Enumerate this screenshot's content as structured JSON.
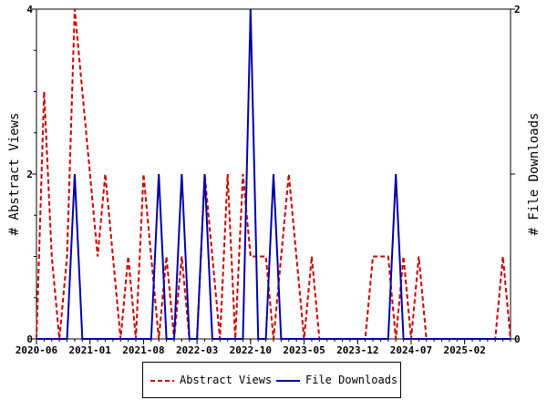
{
  "chart_data": {
    "type": "line",
    "y_left_label": "# Abstract Views",
    "y_right_label": "# File Downloads",
    "y_left_lim": [
      0,
      4
    ],
    "y_right_lim": [
      0,
      2
    ],
    "y_left_ticks": [
      "0",
      "2",
      "4"
    ],
    "y_right_ticks": [
      "0",
      "1",
      "2"
    ],
    "x_tick_labels": [
      "2020-06",
      "2021-01",
      "2021-08",
      "2022-03",
      "2022-10",
      "2023-05",
      "2023-12",
      "2024-07",
      "2025-02"
    ],
    "months": [
      "2020-06",
      "2020-07",
      "2020-08",
      "2020-09",
      "2020-10",
      "2020-11",
      "2020-12",
      "2021-01",
      "2021-02",
      "2021-03",
      "2021-04",
      "2021-05",
      "2021-06",
      "2021-07",
      "2021-08",
      "2021-09",
      "2021-10",
      "2021-11",
      "2021-12",
      "2022-01",
      "2022-02",
      "2022-03",
      "2022-04",
      "2022-05",
      "2022-06",
      "2022-07",
      "2022-08",
      "2022-09",
      "2022-10",
      "2022-11",
      "2022-12",
      "2023-01",
      "2023-02",
      "2023-03",
      "2023-04",
      "2023-05",
      "2023-06",
      "2023-07",
      "2023-08",
      "2023-09",
      "2023-10",
      "2023-11",
      "2023-12",
      "2024-01",
      "2024-02",
      "2024-03",
      "2024-04",
      "2024-05",
      "2024-06",
      "2024-07",
      "2024-08",
      "2024-09",
      "2024-10",
      "2024-11",
      "2024-12",
      "2025-01",
      "2025-02",
      "2025-03",
      "2025-04",
      "2025-05",
      "2025-06",
      "2025-07",
      "2025-08"
    ],
    "series": [
      {
        "name": "Abstract Views",
        "color": "#cc0000",
        "axis": "left",
        "style": "dashed",
        "values": [
          0,
          3,
          1,
          0,
          1,
          4,
          3,
          2,
          1,
          2,
          1,
          0,
          1,
          0,
          2,
          1,
          0,
          1,
          0,
          1,
          0,
          0,
          2,
          1,
          0,
          2,
          0,
          2,
          1,
          1,
          1,
          0,
          1,
          2,
          1,
          0,
          1,
          0,
          0,
          0,
          0,
          0,
          0,
          0,
          1,
          1,
          1,
          0,
          1,
          0,
          1,
          0,
          0,
          0,
          0,
          0,
          0,
          0,
          0,
          0,
          0,
          1,
          0
        ]
      },
      {
        "name": "File Downloads",
        "color": "#0000aa",
        "axis": "right",
        "style": "solid",
        "values": [
          0,
          0,
          0,
          0,
          0,
          1,
          0,
          0,
          0,
          0,
          0,
          0,
          0,
          0,
          0,
          0,
          1,
          0,
          0,
          1,
          0,
          0,
          1,
          0,
          0,
          0,
          0,
          0,
          2,
          0,
          0,
          1,
          0,
          0,
          0,
          0,
          0,
          0,
          0,
          0,
          0,
          0,
          0,
          0,
          0,
          0,
          0,
          1,
          0,
          0,
          0,
          0,
          0,
          0,
          0,
          0,
          0,
          0,
          0,
          0,
          0,
          0,
          0
        ]
      }
    ],
    "legend_position": "bottom"
  },
  "legend": {
    "views_label": "Abstract Views",
    "downloads_label": "File Downloads"
  }
}
